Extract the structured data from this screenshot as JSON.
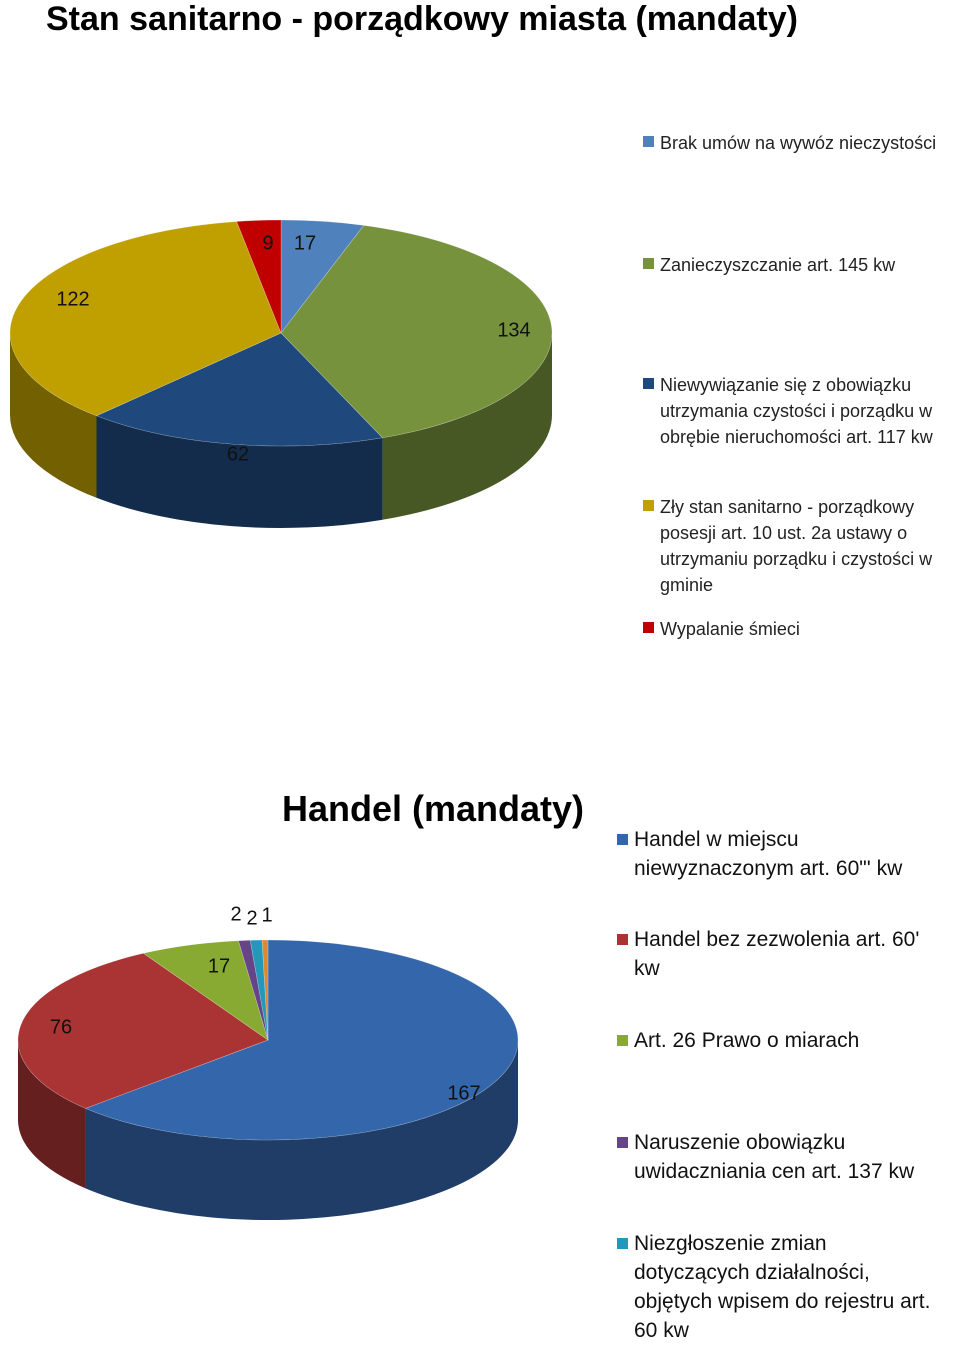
{
  "chart_data": [
    {
      "type": "pie",
      "title": "Stan sanitarno - porządkowy miasta (mandaty)",
      "categories": [
        "Brak umów na wywóz nieczystości",
        "Zanieczyszczanie art. 145 kw",
        "Niewywiązanie się z obowiązku utrzymania czystości i porządku w obrębie nieruchomości art. 117 kw",
        "Zły stan sanitarno - porządkowy posesji art. 10 ust. 2a ustawy o utrzymaniu porządku i czystości w gminie",
        "Wypalanie śmieci"
      ],
      "values": [
        17,
        134,
        62,
        122,
        9
      ],
      "labels": [
        "17",
        "134",
        "62",
        "122",
        "9"
      ],
      "colors": [
        "#4F81BD",
        "#76923C",
        "#1F497D",
        "#C0A000",
        "#C00000"
      ],
      "legend": "right",
      "three_d": true
    },
    {
      "type": "pie",
      "title": "Handel (mandaty)",
      "categories": [
        "Handel w miejscu niewyznaczonym art. 60\"' kw",
        "Handel bez zezwolenia art. 60' kw",
        "Art. 26 Prawo o miarach",
        "Naruszenie obowiązku uwidaczniania cen art. 137 kw",
        "Niezgłoszenie zmian dotyczących działalności, objętych wpisem do rejestru art. 60 kw",
        ""
      ],
      "values": [
        167,
        76,
        17,
        2,
        2,
        1
      ],
      "labels": [
        "167",
        "76",
        "17",
        "2",
        "2",
        "1"
      ],
      "colors": [
        "#3366AA",
        "#AA3333",
        "#88AA33",
        "#664488",
        "#2299BB",
        "#DD8833"
      ],
      "legend": "right",
      "three_d": true
    }
  ]
}
